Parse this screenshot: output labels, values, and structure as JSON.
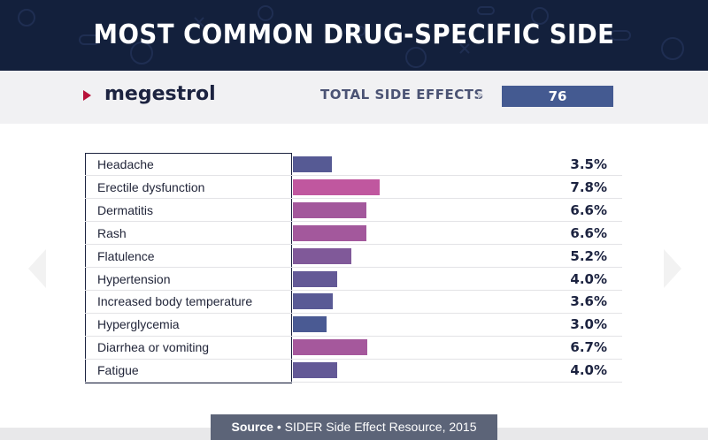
{
  "header": {
    "title": "MOST COMMON DRUG-SPECIFIC SIDE EFFECTS"
  },
  "drug": {
    "name": "megestrol"
  },
  "total": {
    "label": "TOTAL SIDE EFFECTS",
    "value": "76"
  },
  "chart_data": {
    "type": "bar",
    "orientation": "horizontal",
    "title": "MOST COMMON DRUG-SPECIFIC SIDE EFFECTS",
    "unit": "%",
    "categories": [
      "Headache",
      "Erectile dysfunction",
      "Dermatitis",
      "Rash",
      "Flatulence",
      "Hypertension",
      "Increased body temperature",
      "Hyperglycemia",
      "Diarrhea or vomiting",
      "Fatigue"
    ],
    "values": [
      3.5,
      7.8,
      6.6,
      6.6,
      5.2,
      4.0,
      3.6,
      3.0,
      6.7,
      4.0
    ],
    "labels": [
      "3.5%",
      "7.8%",
      "6.6%",
      "6.6%",
      "5.2%",
      "4.0%",
      "3.6%",
      "3.0%",
      "6.7%",
      "4.0%"
    ],
    "colors": {
      "low": "#4a5a93",
      "high": "#c0579f"
    }
  },
  "footer": {
    "source_prefix": "Source",
    "source_text": " • SIDER Side Effect Resource, 2015"
  }
}
